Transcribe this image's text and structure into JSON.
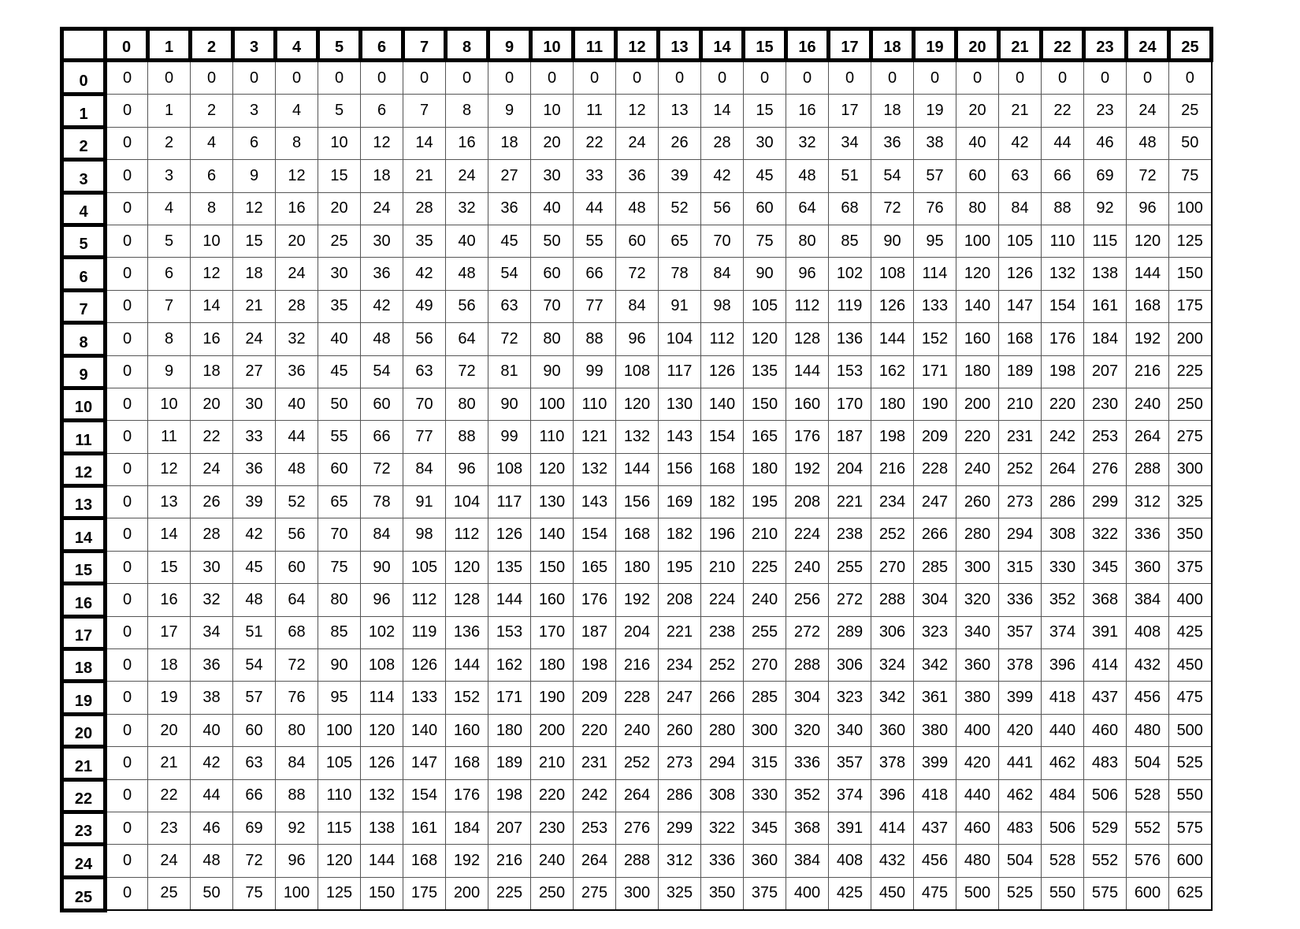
{
  "table": {
    "corner": "",
    "column_headers": [
      "0",
      "1",
      "2",
      "3",
      "4",
      "5",
      "6",
      "7",
      "8",
      "9",
      "10",
      "11",
      "12",
      "13",
      "14",
      "15",
      "16",
      "17",
      "18",
      "19",
      "20",
      "21",
      "22",
      "23",
      "24",
      "25"
    ],
    "row_headers": [
      "0",
      "1",
      "2",
      "3",
      "4",
      "5",
      "6",
      "7",
      "8",
      "9",
      "10",
      "11",
      "12",
      "13",
      "14",
      "15",
      "16",
      "17",
      "18",
      "19",
      "20",
      "21",
      "22",
      "23",
      "24",
      "25"
    ],
    "rows": [
      [
        0,
        0,
        0,
        0,
        0,
        0,
        0,
        0,
        0,
        0,
        0,
        0,
        0,
        0,
        0,
        0,
        0,
        0,
        0,
        0,
        0,
        0,
        0,
        0,
        0,
        0
      ],
      [
        0,
        1,
        2,
        3,
        4,
        5,
        6,
        7,
        8,
        9,
        10,
        11,
        12,
        13,
        14,
        15,
        16,
        17,
        18,
        19,
        20,
        21,
        22,
        23,
        24,
        25
      ],
      [
        0,
        2,
        4,
        6,
        8,
        10,
        12,
        14,
        16,
        18,
        20,
        22,
        24,
        26,
        28,
        30,
        32,
        34,
        36,
        38,
        40,
        42,
        44,
        46,
        48,
        50
      ],
      [
        0,
        3,
        6,
        9,
        12,
        15,
        18,
        21,
        24,
        27,
        30,
        33,
        36,
        39,
        42,
        45,
        48,
        51,
        54,
        57,
        60,
        63,
        66,
        69,
        72,
        75
      ],
      [
        0,
        4,
        8,
        12,
        16,
        20,
        24,
        28,
        32,
        36,
        40,
        44,
        48,
        52,
        56,
        60,
        64,
        68,
        72,
        76,
        80,
        84,
        88,
        92,
        96,
        100
      ],
      [
        0,
        5,
        10,
        15,
        20,
        25,
        30,
        35,
        40,
        45,
        50,
        55,
        60,
        65,
        70,
        75,
        80,
        85,
        90,
        95,
        100,
        105,
        110,
        115,
        120,
        125
      ],
      [
        0,
        6,
        12,
        18,
        24,
        30,
        36,
        42,
        48,
        54,
        60,
        66,
        72,
        78,
        84,
        90,
        96,
        102,
        108,
        114,
        120,
        126,
        132,
        138,
        144,
        150
      ],
      [
        0,
        7,
        14,
        21,
        28,
        35,
        42,
        49,
        56,
        63,
        70,
        77,
        84,
        91,
        98,
        105,
        112,
        119,
        126,
        133,
        140,
        147,
        154,
        161,
        168,
        175
      ],
      [
        0,
        8,
        16,
        24,
        32,
        40,
        48,
        56,
        64,
        72,
        80,
        88,
        96,
        104,
        112,
        120,
        128,
        136,
        144,
        152,
        160,
        168,
        176,
        184,
        192,
        200
      ],
      [
        0,
        9,
        18,
        27,
        36,
        45,
        54,
        63,
        72,
        81,
        90,
        99,
        108,
        117,
        126,
        135,
        144,
        153,
        162,
        171,
        180,
        189,
        198,
        207,
        216,
        225
      ],
      [
        0,
        10,
        20,
        30,
        40,
        50,
        60,
        70,
        80,
        90,
        100,
        110,
        120,
        130,
        140,
        150,
        160,
        170,
        180,
        190,
        200,
        210,
        220,
        230,
        240,
        250
      ],
      [
        0,
        11,
        22,
        33,
        44,
        55,
        66,
        77,
        88,
        99,
        110,
        121,
        132,
        143,
        154,
        165,
        176,
        187,
        198,
        209,
        220,
        231,
        242,
        253,
        264,
        275
      ],
      [
        0,
        12,
        24,
        36,
        48,
        60,
        72,
        84,
        96,
        108,
        120,
        132,
        144,
        156,
        168,
        180,
        192,
        204,
        216,
        228,
        240,
        252,
        264,
        276,
        288,
        300
      ],
      [
        0,
        13,
        26,
        39,
        52,
        65,
        78,
        91,
        104,
        117,
        130,
        143,
        156,
        169,
        182,
        195,
        208,
        221,
        234,
        247,
        260,
        273,
        286,
        299,
        312,
        325
      ],
      [
        0,
        14,
        28,
        42,
        56,
        70,
        84,
        98,
        112,
        126,
        140,
        154,
        168,
        182,
        196,
        210,
        224,
        238,
        252,
        266,
        280,
        294,
        308,
        322,
        336,
        350
      ],
      [
        0,
        15,
        30,
        45,
        60,
        75,
        90,
        105,
        120,
        135,
        150,
        165,
        180,
        195,
        210,
        225,
        240,
        255,
        270,
        285,
        300,
        315,
        330,
        345,
        360,
        375
      ],
      [
        0,
        16,
        32,
        48,
        64,
        80,
        96,
        112,
        128,
        144,
        160,
        176,
        192,
        208,
        224,
        240,
        256,
        272,
        288,
        304,
        320,
        336,
        352,
        368,
        384,
        400
      ],
      [
        0,
        17,
        34,
        51,
        68,
        85,
        102,
        119,
        136,
        153,
        170,
        187,
        204,
        221,
        238,
        255,
        272,
        289,
        306,
        323,
        340,
        357,
        374,
        391,
        408,
        425
      ],
      [
        0,
        18,
        36,
        54,
        72,
        90,
        108,
        126,
        144,
        162,
        180,
        198,
        216,
        234,
        252,
        270,
        288,
        306,
        324,
        342,
        360,
        378,
        396,
        414,
        432,
        450
      ],
      [
        0,
        19,
        38,
        57,
        76,
        95,
        114,
        133,
        152,
        171,
        190,
        209,
        228,
        247,
        266,
        285,
        304,
        323,
        342,
        361,
        380,
        399,
        418,
        437,
        456,
        475
      ],
      [
        0,
        20,
        40,
        60,
        80,
        100,
        120,
        140,
        160,
        180,
        200,
        220,
        240,
        260,
        280,
        300,
        320,
        340,
        360,
        380,
        400,
        420,
        440,
        460,
        480,
        500
      ],
      [
        0,
        21,
        42,
        63,
        84,
        105,
        126,
        147,
        168,
        189,
        210,
        231,
        252,
        273,
        294,
        315,
        336,
        357,
        378,
        399,
        420,
        441,
        462,
        483,
        504,
        525
      ],
      [
        0,
        22,
        44,
        66,
        88,
        110,
        132,
        154,
        176,
        198,
        220,
        242,
        264,
        286,
        308,
        330,
        352,
        374,
        396,
        418,
        440,
        462,
        484,
        506,
        528,
        550
      ],
      [
        0,
        23,
        46,
        69,
        92,
        115,
        138,
        161,
        184,
        207,
        230,
        253,
        276,
        299,
        322,
        345,
        368,
        391,
        414,
        437,
        460,
        483,
        506,
        529,
        552,
        575
      ],
      [
        0,
        24,
        48,
        72,
        96,
        120,
        144,
        168,
        192,
        216,
        240,
        264,
        288,
        312,
        336,
        360,
        384,
        408,
        432,
        456,
        480,
        504,
        528,
        552,
        576,
        600
      ],
      [
        0,
        25,
        50,
        75,
        100,
        125,
        150,
        175,
        200,
        225,
        250,
        275,
        300,
        325,
        350,
        375,
        400,
        425,
        450,
        475,
        500,
        525,
        550,
        575,
        600,
        625
      ]
    ]
  }
}
